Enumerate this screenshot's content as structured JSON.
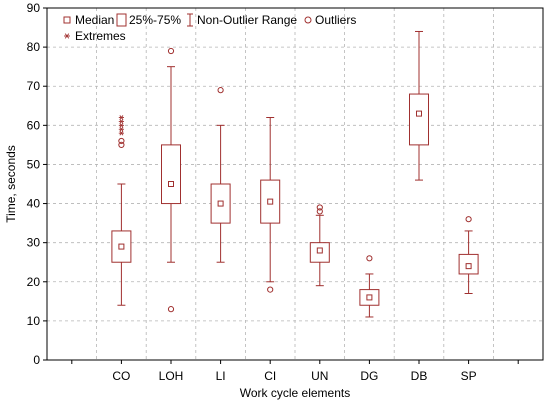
{
  "chart_data": {
    "type": "boxplot",
    "xlabel": "Work cycle elements",
    "ylabel": "Time, seconds",
    "ylim": [
      0,
      90
    ],
    "yticks": [
      0,
      10,
      20,
      30,
      40,
      50,
      60,
      70,
      80,
      90
    ],
    "grid": true,
    "legend_position": "top-left",
    "legend": [
      {
        "key": "median",
        "label": "Median"
      },
      {
        "key": "iqr",
        "label": "25%-75%"
      },
      {
        "key": "range",
        "label": "Non-Outlier Range"
      },
      {
        "key": "outliers",
        "label": "Outliers"
      },
      {
        "key": "extremes",
        "label": "Extremes"
      }
    ],
    "color": "#a0302f",
    "slots": 10,
    "categories": [
      {
        "label": "CO",
        "slot": 2,
        "median": 29,
        "q1": 25,
        "q3": 33,
        "min": 14,
        "max": 45,
        "outliers": [
          55,
          56
        ],
        "extremes": [
          58,
          59,
          60,
          61,
          62
        ]
      },
      {
        "label": "LOH",
        "slot": 3,
        "median": 45,
        "q1": 40,
        "q3": 55,
        "min": 25,
        "max": 75,
        "outliers": [
          79,
          13
        ],
        "extremes": []
      },
      {
        "label": "LI",
        "slot": 4,
        "median": 40,
        "q1": 35,
        "q3": 45,
        "min": 25,
        "max": 60,
        "outliers": [
          69
        ],
        "extremes": []
      },
      {
        "label": "CI",
        "slot": 5,
        "median": 40.5,
        "q1": 35,
        "q3": 46,
        "min": 20,
        "max": 62,
        "outliers": [
          18
        ],
        "extremes": []
      },
      {
        "label": "UN",
        "slot": 6,
        "median": 28,
        "q1": 25,
        "q3": 30,
        "min": 19,
        "max": 37,
        "outliers": [
          38,
          39
        ],
        "extremes": []
      },
      {
        "label": "DG",
        "slot": 7,
        "median": 16,
        "q1": 14,
        "q3": 18,
        "min": 11,
        "max": 22,
        "outliers": [
          26
        ],
        "extremes": []
      },
      {
        "label": "DB",
        "slot": 8,
        "median": 63,
        "q1": 55,
        "q3": 68,
        "min": 46,
        "max": 84,
        "outliers": [],
        "extremes": []
      },
      {
        "label": "SP",
        "slot": 9,
        "median": 24,
        "q1": 22,
        "q3": 27,
        "min": 17,
        "max": 33,
        "outliers": [
          36
        ],
        "extremes": []
      }
    ]
  }
}
